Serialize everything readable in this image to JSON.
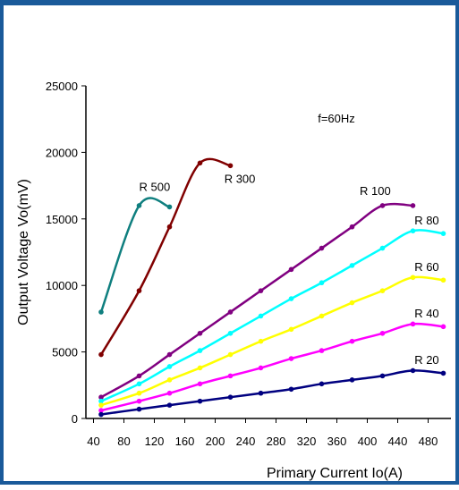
{
  "chart_data": {
    "type": "line",
    "title": "",
    "annotation": "f=60Hz",
    "xlabel": "Primary Current Io(A)",
    "ylabel": "Output Voltage Vo(mV)",
    "xlim": [
      30,
      510
    ],
    "ylim": [
      0,
      25000
    ],
    "xticks": [
      40,
      80,
      120,
      160,
      200,
      240,
      280,
      320,
      360,
      400,
      440,
      480
    ],
    "yticks": [
      0,
      5000,
      10000,
      15000,
      20000,
      25000
    ],
    "grid": false,
    "series": [
      {
        "name": "R 500",
        "color": "#0f7f7f",
        "x": [
          50,
          100,
          140
        ],
        "y": [
          8000,
          16000,
          15900
        ],
        "label_x": 100,
        "label_y": 17100
      },
      {
        "name": "R 300",
        "color": "#800000",
        "x": [
          50,
          100,
          140,
          180,
          220
        ],
        "y": [
          4800,
          9600,
          14400,
          19200,
          19000
        ],
        "label_x": 212,
        "label_y": 17700
      },
      {
        "name": "R 100",
        "color": "#800080",
        "x": [
          50,
          100,
          140,
          180,
          220,
          260,
          300,
          340,
          380,
          420,
          460
        ],
        "y": [
          1600,
          3200,
          4800,
          6400,
          8000,
          9600,
          11200,
          12800,
          14400,
          16000,
          16000
        ],
        "label_x": 390,
        "label_y": 16800
      },
      {
        "name": "R 80",
        "color": "#00ffff",
        "x": [
          50,
          100,
          140,
          180,
          220,
          260,
          300,
          340,
          380,
          420,
          460,
          500
        ],
        "y": [
          1300,
          2600,
          3900,
          5100,
          6400,
          7700,
          9000,
          10200,
          11500,
          12800,
          14100,
          13900
        ],
        "label_x": 462,
        "label_y": 14600
      },
      {
        "name": "R 60",
        "color": "#ffff00",
        "x": [
          50,
          100,
          140,
          180,
          220,
          260,
          300,
          340,
          380,
          420,
          460,
          500
        ],
        "y": [
          1000,
          1900,
          2900,
          3800,
          4800,
          5800,
          6700,
          7700,
          8700,
          9600,
          10600,
          10400
        ],
        "label_x": 462,
        "label_y": 11100
      },
      {
        "name": "R 40",
        "color": "#ff00ff",
        "x": [
          50,
          100,
          140,
          180,
          220,
          260,
          300,
          340,
          380,
          420,
          460,
          500
        ],
        "y": [
          600,
          1300,
          1900,
          2600,
          3200,
          3800,
          4500,
          5100,
          5800,
          6400,
          7100,
          6900
        ],
        "label_x": 462,
        "label_y": 7600
      },
      {
        "name": "R 20",
        "color": "#000080",
        "x": [
          50,
          100,
          140,
          180,
          220,
          260,
          300,
          340,
          380,
          420,
          460,
          500
        ],
        "y": [
          300,
          700,
          1000,
          1300,
          1600,
          1900,
          2200,
          2600,
          2900,
          3200,
          3600,
          3400
        ],
        "label_x": 462,
        "label_y": 4100
      }
    ]
  }
}
